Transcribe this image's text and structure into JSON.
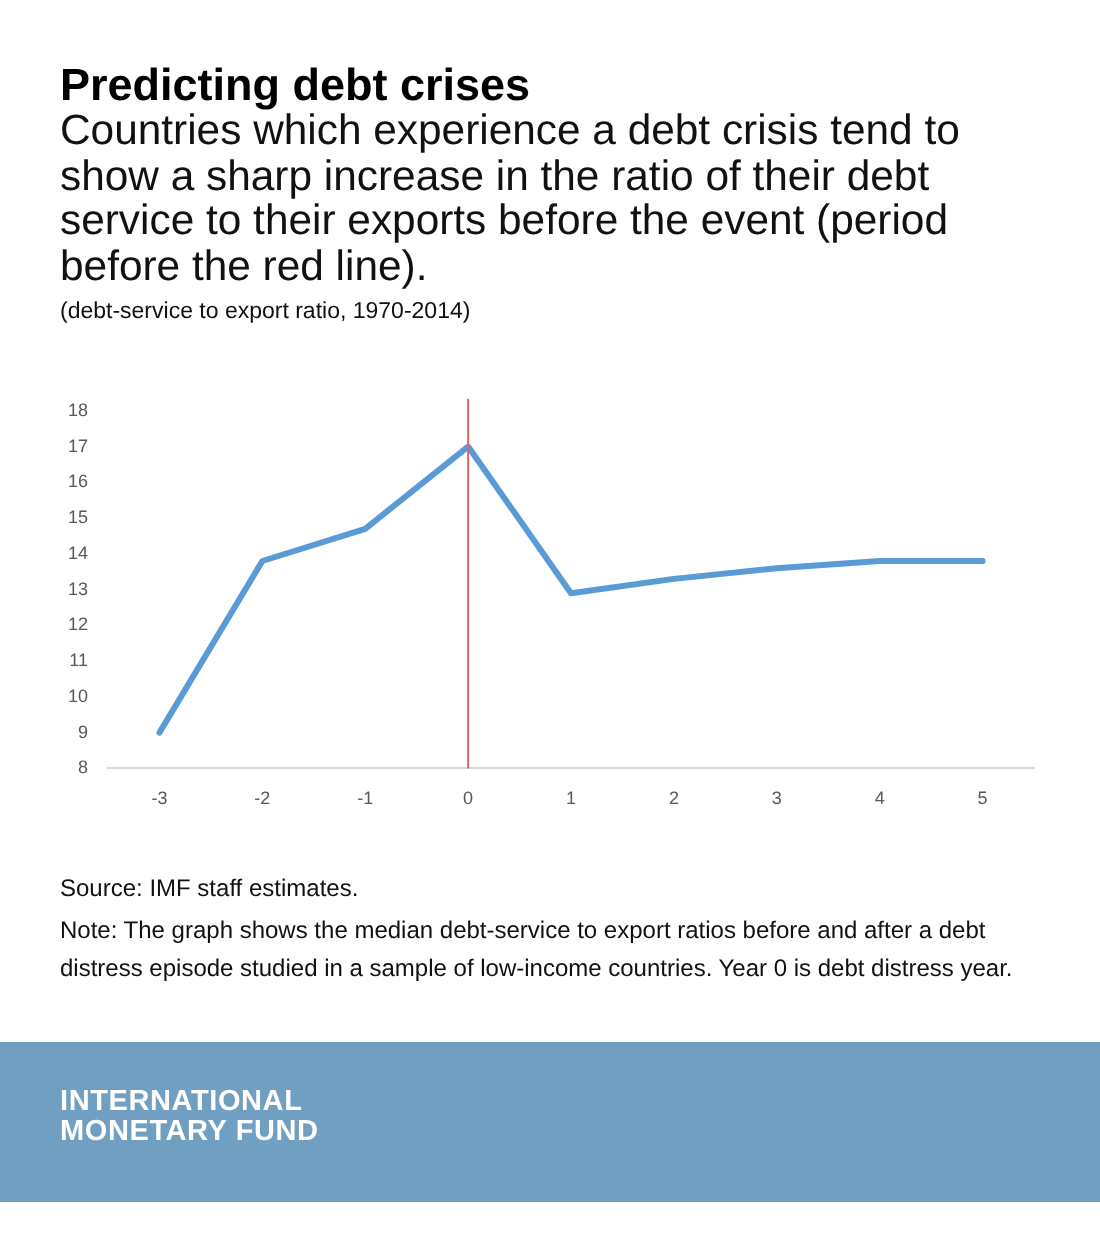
{
  "chart_data": {
    "type": "line",
    "title": "Predicting debt crises",
    "subtitle": "Countries which experience a debt crisis tend to show a sharp increase in the ratio of their debt service to their exports before the event (period before the red line).",
    "x": [
      -3,
      -2,
      -1,
      0,
      1,
      2,
      3,
      4,
      5
    ],
    "series": [
      {
        "color": "#5b9bd5",
        "values": [
          9.0,
          13.8,
          14.7,
          17.0,
          12.9,
          13.3,
          13.6,
          13.8,
          13.8
        ]
      }
    ],
    "xlim": [
      -3.5,
      5.5
    ],
    "xticks": [
      -3,
      -2,
      -1,
      0,
      1,
      2,
      3,
      4,
      5
    ],
    "ylim": [
      8,
      18
    ],
    "yticks": [
      8,
      9,
      10,
      11,
      12,
      13,
      14,
      15,
      16,
      17,
      18
    ],
    "marker": "none",
    "ref_lines": [
      {
        "axis": "x",
        "value": 0,
        "color": "#e06666"
      }
    ],
    "annotations": [
      "(debt-service to export ratio, 1970-2014)",
      "Source: IMF staff estimates.",
      "Note: The graph shows the median debt-service to export ratios before and after a debt distress episode studied in a sample of low-income countries. Year 0 is debt distress year.",
      "INTERNATIONAL MONETARY FUND"
    ]
  }
}
